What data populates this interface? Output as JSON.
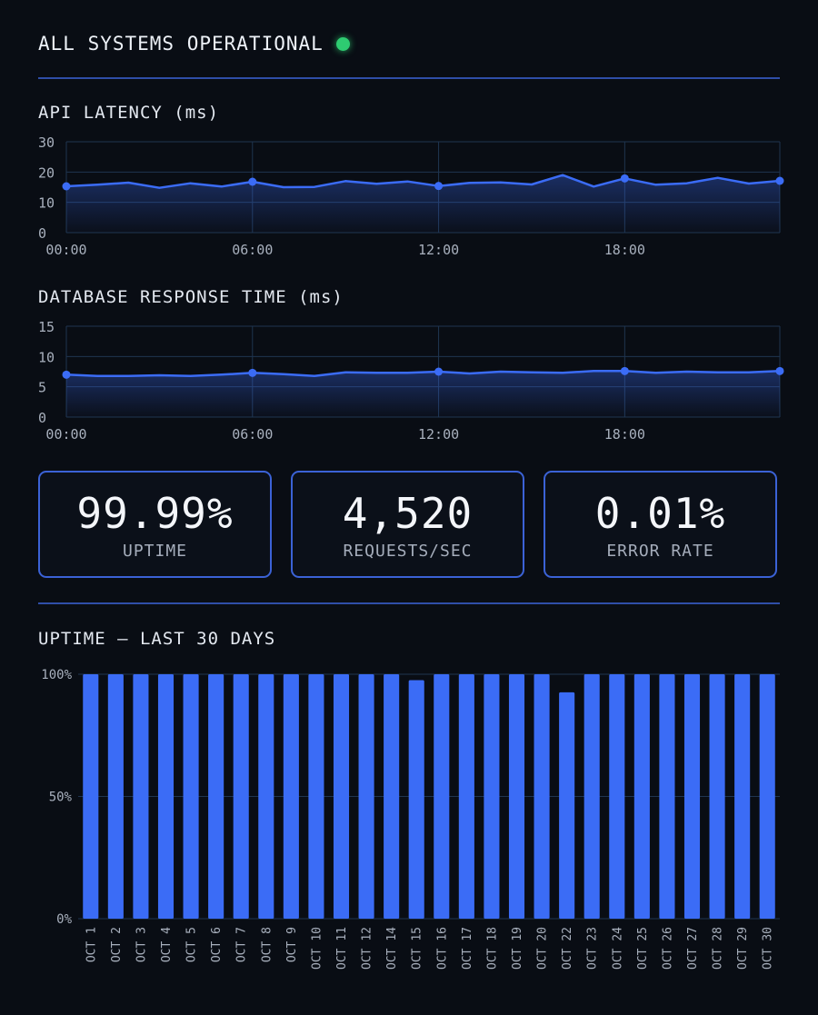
{
  "status": {
    "text": "ALL SYSTEMS OPERATIONAL",
    "color": "#2ecc71"
  },
  "colors": {
    "accent": "#3b6cf6",
    "grid": "#1f3550",
    "rule": "#2f4ea8"
  },
  "metrics": [
    {
      "value": "99.99%",
      "label": "UPTIME"
    },
    {
      "value": "4,520",
      "label": "REQUESTS/SEC"
    },
    {
      "value": "0.01%",
      "label": "ERROR RATE"
    }
  ],
  "chart_data": [
    {
      "type": "area",
      "title": "API LATENCY (ms)",
      "x_ticks": [
        "00:00",
        "06:00",
        "12:00",
        "18:00"
      ],
      "y_ticks": [
        0,
        10,
        20,
        30
      ],
      "ylim": [
        0,
        30
      ],
      "xlim": [
        0,
        23
      ],
      "x": [
        0,
        1,
        2,
        3,
        4,
        5,
        6,
        7,
        8,
        9,
        10,
        11,
        12,
        13,
        14,
        15,
        16,
        17,
        18,
        19,
        20,
        21,
        22,
        23
      ],
      "values": [
        15.3,
        15.8,
        16.5,
        14.8,
        16.3,
        15.2,
        16.8,
        15.0,
        15.1,
        17.0,
        16.1,
        16.9,
        15.4,
        16.4,
        16.6,
        15.9,
        19.0,
        15.2,
        17.9,
        15.8,
        16.3,
        18.1,
        16.2,
        17.1
      ],
      "marker_x": [
        0,
        6,
        12,
        18,
        23
      ],
      "grid": true
    },
    {
      "type": "area",
      "title": "DATABASE RESPONSE TIME (ms)",
      "x_ticks": [
        "00:00",
        "06:00",
        "12:00",
        "18:00"
      ],
      "y_ticks": [
        0,
        5,
        10,
        15
      ],
      "ylim": [
        0,
        15
      ],
      "xlim": [
        0,
        23
      ],
      "x": [
        0,
        1,
        2,
        3,
        4,
        5,
        6,
        7,
        8,
        9,
        10,
        11,
        12,
        13,
        14,
        15,
        16,
        17,
        18,
        19,
        20,
        21,
        22,
        23
      ],
      "values": [
        7.0,
        6.8,
        6.8,
        6.9,
        6.8,
        7.0,
        7.3,
        7.1,
        6.8,
        7.4,
        7.3,
        7.3,
        7.5,
        7.2,
        7.5,
        7.4,
        7.3,
        7.6,
        7.6,
        7.3,
        7.5,
        7.4,
        7.4,
        7.6
      ],
      "marker_x": [
        0,
        6,
        12,
        18,
        23
      ],
      "grid": true
    },
    {
      "type": "bar",
      "title": "UPTIME — LAST 30 DAYS",
      "categories": [
        "OCT 1",
        "OCT 2",
        "OCT 3",
        "OCT 4",
        "OCT 5",
        "OCT 6",
        "OCT 7",
        "OCT 8",
        "OCT 9",
        "OCT 10",
        "OCT 11",
        "OCT 12",
        "OCT 14",
        "OCT 15",
        "OCT 16",
        "OCT 17",
        "OCT 18",
        "OCT 19",
        "OCT 20",
        "OCT 22",
        "OCT 23",
        "OCT 24",
        "OCT 25",
        "OCT 26",
        "OCT 27",
        "OCT 28",
        "OCT 29",
        "OCT 30"
      ],
      "values": [
        100,
        100,
        100,
        100,
        100,
        100,
        100,
        100,
        100,
        100,
        100,
        100,
        100,
        97.6,
        100,
        100,
        100,
        100,
        100,
        92.6,
        100,
        100,
        100,
        100,
        100,
        100,
        100,
        100
      ],
      "y_ticks": [
        "0%",
        "50%",
        "100%"
      ],
      "ylim": [
        0,
        100
      ],
      "grid": true
    }
  ]
}
